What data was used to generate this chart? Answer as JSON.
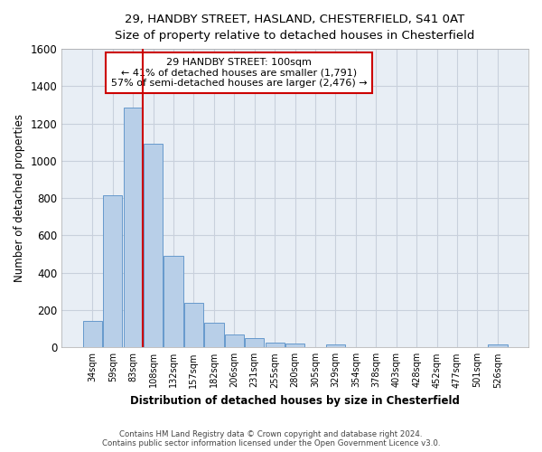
{
  "title_line1": "29, HANDBY STREET, HASLAND, CHESTERFIELD, S41 0AT",
  "title_line2": "Size of property relative to detached houses in Chesterfield",
  "xlabel": "Distribution of detached houses by size in Chesterfield",
  "ylabel": "Number of detached properties",
  "footer_line1": "Contains HM Land Registry data © Crown copyright and database right 2024.",
  "footer_line2": "Contains public sector information licensed under the Open Government Licence v3.0.",
  "annotation_line1": "29 HANDBY STREET: 100sqm",
  "annotation_line2": "← 41% of detached houses are smaller (1,791)",
  "annotation_line3": "57% of semi-detached houses are larger (2,476) →",
  "bar_color": "#b8cfe8",
  "bar_edge_color": "#6699cc",
  "grid_color": "#c8d0dc",
  "vline_color": "#cc0000",
  "annotation_box_edge": "#cc0000",
  "plot_bg_color": "#e8eef5",
  "fig_bg_color": "#ffffff",
  "categories": [
    "34sqm",
    "59sqm",
    "83sqm",
    "108sqm",
    "132sqm",
    "157sqm",
    "182sqm",
    "206sqm",
    "231sqm",
    "255sqm",
    "280sqm",
    "305sqm",
    "329sqm",
    "354sqm",
    "378sqm",
    "403sqm",
    "428sqm",
    "452sqm",
    "477sqm",
    "501sqm",
    "526sqm"
  ],
  "values": [
    140,
    815,
    1285,
    1090,
    490,
    240,
    130,
    70,
    48,
    28,
    20,
    0,
    15,
    0,
    0,
    0,
    0,
    0,
    0,
    0,
    15
  ],
  "ylim": [
    0,
    1600
  ],
  "yticks": [
    0,
    200,
    400,
    600,
    800,
    1000,
    1200,
    1400,
    1600
  ],
  "vline_index": 3
}
